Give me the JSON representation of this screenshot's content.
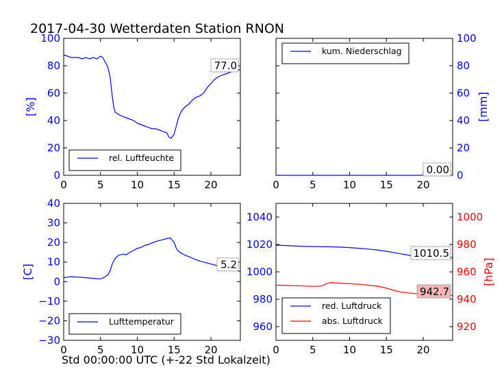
{
  "title": "2017-04-30 Wetterdaten Station RNON",
  "xlabel": "Std 00:00:00 UTC (+-22 Std Lokalzeit)",
  "colors": {
    "blue": "#0000ff",
    "red": "#ff0000",
    "last_value_box": "#ffffff",
    "last_value_box_red": "#f4b6b6"
  },
  "chart_data": [
    {
      "id": "humidity",
      "type": "line",
      "ylabel": "[%]",
      "ylim": [
        0,
        100
      ],
      "yticks": [
        0,
        20,
        40,
        60,
        80,
        100
      ],
      "xlim": [
        0,
        24
      ],
      "xticks": [
        0,
        5,
        10,
        15,
        20
      ],
      "legend": "lower-left",
      "last_value_label": "77.0",
      "series": [
        {
          "name": "rel. Luftfeuchte",
          "color": "#0000ff",
          "x": [
            0,
            0.5,
            1,
            1.5,
            2,
            2.5,
            3,
            3.5,
            4,
            4.5,
            5,
            5.3,
            5.6,
            6,
            6.3,
            6.6,
            6.8,
            7,
            7.3,
            7.6,
            8,
            8.5,
            9,
            9.5,
            10,
            10.5,
            11,
            11.5,
            12,
            12.5,
            13,
            13.5,
            14,
            14.3,
            14.6,
            15,
            15.3,
            15.6,
            16,
            16.5,
            17,
            17.5,
            18,
            18.5,
            19,
            19.5,
            20,
            20.5,
            21,
            21.5,
            22,
            22.5,
            23,
            23.5,
            24
          ],
          "y": [
            88,
            87,
            86,
            86,
            86,
            85,
            86,
            85,
            86,
            85,
            87,
            86,
            83,
            79,
            72,
            58,
            50,
            46,
            45,
            44,
            43,
            42,
            41,
            40,
            38,
            37,
            36,
            35,
            34,
            34,
            33,
            32,
            31,
            28,
            27,
            30,
            36,
            42,
            47,
            50,
            52,
            55,
            57,
            58,
            60,
            64,
            67,
            70,
            72,
            73,
            74,
            75,
            76,
            77,
            77
          ]
        }
      ]
    },
    {
      "id": "precipitation",
      "type": "line",
      "ylabel": "[mm]",
      "ylim": [
        0,
        100
      ],
      "yticks": [
        0,
        20,
        40,
        60,
        80,
        100
      ],
      "xlim": [
        0,
        24
      ],
      "xticks": [
        0,
        5,
        10,
        15,
        20
      ],
      "yaxis_side": "right",
      "legend": "top-left",
      "last_value_label": "0.00",
      "series": [
        {
          "name": "kum. Niederschlag",
          "color": "#0000ff",
          "x": [
            0,
            24
          ],
          "y": [
            0,
            0
          ]
        }
      ]
    },
    {
      "id": "temperature",
      "type": "line",
      "ylabel": "[C]",
      "ylim": [
        -30,
        40
      ],
      "yticks": [
        -30,
        -20,
        -10,
        0,
        10,
        20,
        30,
        40
      ],
      "xlim": [
        0,
        24
      ],
      "xticks": [
        0,
        5,
        10,
        15,
        20
      ],
      "legend": "lower-left",
      "last_value_label": "5.2",
      "series": [
        {
          "name": "Lufttemperatur",
          "color": "#0000ff",
          "x": [
            0,
            0.5,
            1,
            1.5,
            2,
            2.5,
            3,
            3.5,
            4,
            4.5,
            5,
            5.5,
            6,
            6.3,
            6.6,
            7,
            7.5,
            8,
            8.5,
            9,
            9.5,
            10,
            10.5,
            11,
            11.5,
            12,
            12.5,
            13,
            13.5,
            14,
            14.5,
            15,
            15.3,
            15.6,
            16,
            16.5,
            17,
            17.5,
            18,
            18.5,
            19,
            19.5,
            20,
            20.5,
            21,
            21.5,
            22,
            22.5,
            23,
            23.5,
            24
          ],
          "y": [
            2,
            2.3,
            2.5,
            2.4,
            2.3,
            2.2,
            2.0,
            1.8,
            1.7,
            1.5,
            1.4,
            2.2,
            3.5,
            5.5,
            9,
            12,
            13.5,
            14,
            13.8,
            15,
            16,
            17,
            17.5,
            18.5,
            19,
            19.8,
            20.5,
            21,
            21.5,
            22,
            22.3,
            20,
            17,
            15.5,
            14.5,
            13.5,
            12.8,
            12,
            11.2,
            10.5,
            10,
            9.5,
            9,
            8.5,
            8,
            7.5,
            7,
            6.5,
            6,
            5.6,
            5.2
          ]
        }
      ]
    },
    {
      "id": "pressure",
      "type": "line",
      "ylabel_right": "[hPa]",
      "ylim_left": [
        950,
        1050
      ],
      "ylim_right": [
        910,
        1010
      ],
      "yticks_left": [
        960,
        980,
        1000,
        1020,
        1040
      ],
      "yticks_right": [
        920,
        940,
        960,
        980,
        1000
      ],
      "xlim": [
        0,
        24
      ],
      "xticks": [
        0,
        5,
        10,
        15,
        20
      ],
      "legend": "lower-left",
      "last_value_labels": [
        "1010.5",
        "942.7"
      ],
      "series": [
        {
          "name": "red. Luftdruck",
          "color": "#0000ff",
          "axis": "left",
          "x": [
            0,
            1,
            2,
            3,
            4,
            5,
            6,
            7,
            8,
            9,
            10,
            11,
            12,
            13,
            14,
            15,
            16,
            17,
            18,
            19,
            20,
            21,
            22,
            23,
            24
          ],
          "y": [
            1019.5,
            1019.3,
            1019,
            1018.8,
            1018.6,
            1018.5,
            1018.4,
            1018.3,
            1018.2,
            1018,
            1017.7,
            1017.3,
            1016.9,
            1016.4,
            1015.8,
            1015,
            1014.1,
            1013.1,
            1012.2,
            1011.5,
            1011,
            1010.8,
            1010.6,
            1010.5,
            1010.5
          ]
        },
        {
          "name": "abs. Luftdruck",
          "color": "#ff0000",
          "axis": "right",
          "x": [
            0,
            1,
            2,
            3,
            4,
            5,
            6,
            6.5,
            7,
            7.5,
            8,
            9,
            10,
            11,
            12,
            13,
            14,
            15,
            16,
            17,
            18,
            19,
            20,
            21,
            22,
            23,
            24
          ],
          "y": [
            950.3,
            950.2,
            950,
            949.9,
            949.6,
            949.4,
            949.6,
            950.2,
            951.8,
            952.2,
            952,
            951.7,
            951.4,
            951,
            950.6,
            950,
            949.3,
            948.1,
            946.5,
            945.3,
            944.6,
            944.1,
            943.8,
            943.5,
            943.1,
            942.8,
            942.7
          ]
        }
      ]
    }
  ]
}
